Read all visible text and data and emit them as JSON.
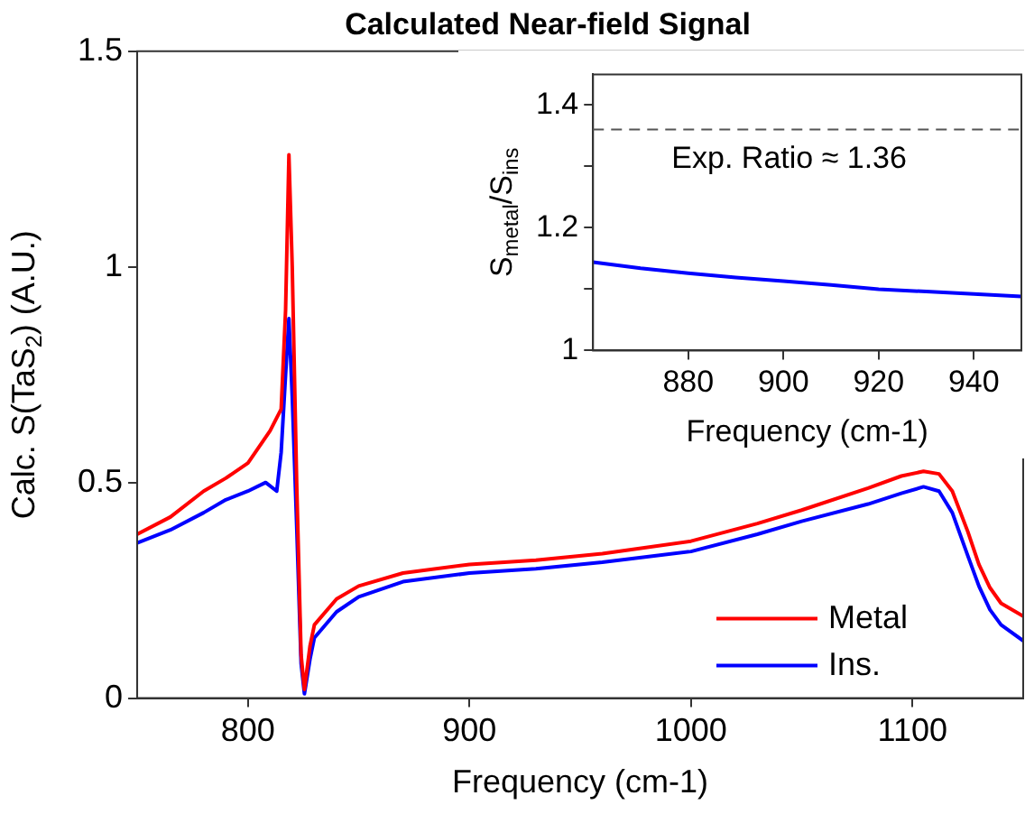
{
  "chart_data": [
    {
      "type": "line",
      "title": "Calculated Near-field Signal",
      "xlabel": "Frequency (cm-1)",
      "ylabel": "Calc. S(TaS$_{2}$) (A.U.)",
      "xlim": [
        750,
        1150
      ],
      "xticks": [
        800,
        900,
        1000,
        1100
      ],
      "ylim": [
        0,
        1.5
      ],
      "yticks": [
        0,
        0.5,
        1,
        1.5
      ],
      "grid": false,
      "legend": "bottom right",
      "marker": "none",
      "line_style": "solid",
      "series": [
        {
          "name": "Metal",
          "color": "#ff0000",
          "x": [
            750,
            765,
            780,
            790,
            800,
            810,
            815,
            817,
            818.5,
            820,
            822,
            824,
            825.5,
            828,
            830,
            840,
            850,
            870,
            900,
            930,
            960,
            1000,
            1030,
            1050,
            1080,
            1095,
            1105,
            1112,
            1118,
            1125,
            1130,
            1135,
            1140,
            1150
          ],
          "values": [
            0.38,
            0.42,
            0.48,
            0.51,
            0.545,
            0.62,
            0.67,
            0.9,
            1.26,
            1.0,
            0.5,
            0.1,
            0.02,
            0.12,
            0.17,
            0.23,
            0.26,
            0.29,
            0.31,
            0.32,
            0.335,
            0.364,
            0.405,
            0.436,
            0.487,
            0.515,
            0.526,
            0.52,
            0.48,
            0.386,
            0.31,
            0.256,
            0.22,
            0.19
          ]
        },
        {
          "name": "Ins.",
          "color": "#0000ff",
          "x": [
            750,
            765,
            780,
            790,
            800,
            808,
            813,
            815,
            817,
            818.5,
            820,
            822,
            824,
            825.5,
            828,
            830,
            840,
            850,
            870,
            900,
            930,
            960,
            1000,
            1030,
            1050,
            1080,
            1095,
            1105,
            1112,
            1118,
            1125,
            1130,
            1135,
            1140,
            1150
          ],
          "values": [
            0.36,
            0.39,
            0.43,
            0.46,
            0.48,
            0.5,
            0.48,
            0.57,
            0.75,
            0.88,
            0.7,
            0.4,
            0.08,
            0.01,
            0.09,
            0.14,
            0.2,
            0.235,
            0.27,
            0.29,
            0.3,
            0.315,
            0.34,
            0.38,
            0.41,
            0.45,
            0.475,
            0.49,
            0.48,
            0.43,
            0.33,
            0.26,
            0.205,
            0.17,
            0.133
          ]
        }
      ]
    },
    {
      "type": "line",
      "xlabel": "Frequency (cm-1)",
      "ylabel": "S$_{metal}$/S$_{ins}$",
      "xlim": [
        860,
        950
      ],
      "xticks": [
        880,
        900,
        920,
        940
      ],
      "ylim": [
        1,
        1.45
      ],
      "yticks": [
        1,
        {
          "value": 1.1,
          "label": null
        },
        1.2,
        {
          "value": 1.3,
          "label": null
        },
        1.4
      ],
      "grid": false,
      "marker": "none",
      "line_style": "solid",
      "series": [
        {
          "color": "#0000ff",
          "x": [
            860,
            870,
            880,
            890,
            900,
            910,
            920,
            930,
            940,
            950
          ],
          "values": [
            1.144,
            1.134,
            1.126,
            1.119,
            1.113,
            1.107,
            1.1,
            1.096,
            1.092,
            1.088
          ]
        }
      ],
      "ref_lines": [
        {
          "axis": "y",
          "value": 1.36,
          "label": "Exp. Ratio ≈ 1.36",
          "color": "#555555",
          "line_style": "dashed"
        }
      ]
    }
  ]
}
